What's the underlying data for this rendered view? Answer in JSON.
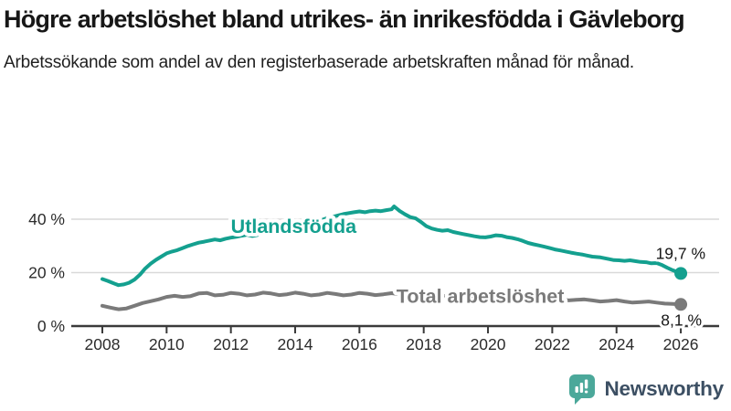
{
  "title": "Högre arbetslöshet bland utrikes- än inrikesfödda i Gävleborg",
  "subtitle": "Arbetssökande som andel av den registerbaserade arbetskraften månad för månad.",
  "branding": {
    "name": "Newsworthy",
    "logo_icon": "speech-bubble-bar-chart-icon"
  },
  "colors": {
    "foreign_born": "#14a08f",
    "total": "#7a7a7a",
    "grid": "#d9d9d9",
    "axis": "#3a3a3a",
    "text": "#1a1a1a",
    "logo_teal": "#4ba89a",
    "logo_text": "#3c4f63"
  },
  "chart_data": {
    "type": "line",
    "unit": "%",
    "grid": "horizontal",
    "legend": "inline-labels",
    "x_axis": {
      "ticks": [
        2008,
        2010,
        2012,
        2014,
        2016,
        2018,
        2020,
        2022,
        2024,
        2026
      ],
      "range": [
        2008,
        2026.2
      ]
    },
    "y_axis": {
      "ticks": [
        {
          "value": 0,
          "label": "0 %"
        },
        {
          "value": 20,
          "label": "20 %"
        },
        {
          "value": 40,
          "label": "40 %"
        }
      ],
      "range": [
        0,
        47
      ]
    },
    "series": [
      {
        "name": "Utlandsfödda",
        "color": "#14a08f",
        "end_label": "19,7 %",
        "end_value": 19.7,
        "label_at": {
          "year": 2012.0,
          "value": 34.9
        },
        "points": [
          [
            2008.0,
            17.6
          ],
          [
            2008.17,
            16.9
          ],
          [
            2008.33,
            16.1
          ],
          [
            2008.5,
            15.3
          ],
          [
            2008.67,
            15.6
          ],
          [
            2008.83,
            16.2
          ],
          [
            2009.0,
            17.4
          ],
          [
            2009.17,
            19.2
          ],
          [
            2009.33,
            21.5
          ],
          [
            2009.5,
            23.3
          ],
          [
            2009.67,
            24.8
          ],
          [
            2009.83,
            26.0
          ],
          [
            2010.0,
            27.2
          ],
          [
            2010.17,
            27.9
          ],
          [
            2010.33,
            28.4
          ],
          [
            2010.5,
            29.2
          ],
          [
            2010.67,
            30.0
          ],
          [
            2010.83,
            30.6
          ],
          [
            2011.0,
            31.2
          ],
          [
            2011.17,
            31.6
          ],
          [
            2011.33,
            32.0
          ],
          [
            2011.5,
            32.4
          ],
          [
            2011.67,
            32.1
          ],
          [
            2011.83,
            32.7
          ],
          [
            2012.0,
            33.1
          ],
          [
            2012.17,
            33.4
          ],
          [
            2012.33,
            33.8
          ],
          [
            2012.5,
            34.2
          ],
          [
            2012.67,
            33.7
          ],
          [
            2012.83,
            34.1
          ],
          [
            2013.0,
            34.9
          ],
          [
            2013.17,
            34.6
          ],
          [
            2013.33,
            35.1
          ],
          [
            2013.5,
            35.6
          ],
          [
            2013.67,
            35.9
          ],
          [
            2013.83,
            36.3
          ],
          [
            2014.0,
            36.8
          ],
          [
            2014.17,
            37.3
          ],
          [
            2014.33,
            37.9
          ],
          [
            2014.5,
            38.4
          ],
          [
            2014.67,
            39.0
          ],
          [
            2014.83,
            39.7
          ],
          [
            2015.0,
            40.4
          ],
          [
            2015.17,
            40.9
          ],
          [
            2015.33,
            41.4
          ],
          [
            2015.5,
            41.9
          ],
          [
            2015.67,
            42.3
          ],
          [
            2015.83,
            42.6
          ],
          [
            2016.0,
            42.9
          ],
          [
            2016.17,
            42.6
          ],
          [
            2016.33,
            43.0
          ],
          [
            2016.5,
            43.2
          ],
          [
            2016.67,
            43.0
          ],
          [
            2016.83,
            43.4
          ],
          [
            2017.0,
            43.7
          ],
          [
            2017.08,
            44.8
          ],
          [
            2017.25,
            43.1
          ],
          [
            2017.42,
            41.8
          ],
          [
            2017.58,
            40.8
          ],
          [
            2017.75,
            40.3
          ],
          [
            2017.92,
            38.9
          ],
          [
            2018.08,
            37.4
          ],
          [
            2018.25,
            36.5
          ],
          [
            2018.42,
            36.0
          ],
          [
            2018.58,
            35.7
          ],
          [
            2018.75,
            35.9
          ],
          [
            2018.92,
            35.2
          ],
          [
            2019.08,
            34.8
          ],
          [
            2019.25,
            34.4
          ],
          [
            2019.42,
            34.0
          ],
          [
            2019.58,
            33.6
          ],
          [
            2019.75,
            33.3
          ],
          [
            2019.92,
            33.2
          ],
          [
            2020.08,
            33.5
          ],
          [
            2020.25,
            34.0
          ],
          [
            2020.42,
            33.8
          ],
          [
            2020.58,
            33.3
          ],
          [
            2020.75,
            33.0
          ],
          [
            2020.92,
            32.5
          ],
          [
            2021.08,
            31.9
          ],
          [
            2021.25,
            31.1
          ],
          [
            2021.42,
            30.6
          ],
          [
            2021.58,
            30.2
          ],
          [
            2021.75,
            29.7
          ],
          [
            2021.92,
            29.2
          ],
          [
            2022.08,
            28.7
          ],
          [
            2022.25,
            28.3
          ],
          [
            2022.42,
            27.9
          ],
          [
            2022.58,
            27.5
          ],
          [
            2022.75,
            27.1
          ],
          [
            2022.92,
            26.8
          ],
          [
            2023.08,
            26.4
          ],
          [
            2023.25,
            26.0
          ],
          [
            2023.5,
            25.7
          ],
          [
            2023.75,
            25.1
          ],
          [
            2023.92,
            24.7
          ],
          [
            2024.08,
            24.6
          ],
          [
            2024.25,
            24.4
          ],
          [
            2024.42,
            24.6
          ],
          [
            2024.58,
            24.3
          ],
          [
            2024.75,
            24.0
          ],
          [
            2024.92,
            23.9
          ],
          [
            2025.08,
            23.5
          ],
          [
            2025.25,
            23.6
          ],
          [
            2025.42,
            22.8
          ],
          [
            2025.58,
            21.8
          ],
          [
            2025.75,
            20.9
          ],
          [
            2025.92,
            20.1
          ],
          [
            2026.0,
            19.7
          ]
        ]
      },
      {
        "name": "Total arbetslöshet",
        "color": "#7a7a7a",
        "end_label": "8,1 %",
        "end_value": 8.1,
        "label_at": {
          "year": 2017.15,
          "value": 8.7
        },
        "points": [
          [
            2008.0,
            7.6
          ],
          [
            2008.25,
            6.9
          ],
          [
            2008.5,
            6.3
          ],
          [
            2008.75,
            6.6
          ],
          [
            2009.0,
            7.6
          ],
          [
            2009.25,
            8.6
          ],
          [
            2009.5,
            9.3
          ],
          [
            2009.75,
            10.0
          ],
          [
            2010.0,
            10.9
          ],
          [
            2010.25,
            11.3
          ],
          [
            2010.5,
            10.9
          ],
          [
            2010.75,
            11.2
          ],
          [
            2011.0,
            12.2
          ],
          [
            2011.25,
            12.4
          ],
          [
            2011.5,
            11.5
          ],
          [
            2011.75,
            11.7
          ],
          [
            2012.0,
            12.4
          ],
          [
            2012.25,
            12.1
          ],
          [
            2012.5,
            11.5
          ],
          [
            2012.75,
            11.8
          ],
          [
            2013.0,
            12.5
          ],
          [
            2013.25,
            12.2
          ],
          [
            2013.5,
            11.6
          ],
          [
            2013.75,
            11.9
          ],
          [
            2014.0,
            12.5
          ],
          [
            2014.25,
            12.1
          ],
          [
            2014.5,
            11.5
          ],
          [
            2014.75,
            11.8
          ],
          [
            2015.0,
            12.4
          ],
          [
            2015.25,
            12.0
          ],
          [
            2015.5,
            11.5
          ],
          [
            2015.75,
            11.8
          ],
          [
            2016.0,
            12.4
          ],
          [
            2016.25,
            12.1
          ],
          [
            2016.5,
            11.6
          ],
          [
            2016.75,
            11.9
          ],
          [
            2017.0,
            12.3
          ],
          [
            2017.25,
            11.9
          ],
          [
            2017.5,
            11.4
          ],
          [
            2017.75,
            11.6
          ],
          [
            2018.0,
            12.0
          ],
          [
            2018.25,
            11.6
          ],
          [
            2018.5,
            11.1
          ],
          [
            2018.75,
            11.3
          ],
          [
            2019.0,
            11.7
          ],
          [
            2019.25,
            11.4
          ],
          [
            2019.5,
            11.0
          ],
          [
            2019.75,
            11.3
          ],
          [
            2020.0,
            11.6
          ],
          [
            2020.25,
            12.6
          ],
          [
            2020.5,
            12.9
          ],
          [
            2020.75,
            12.4
          ],
          [
            2021.0,
            12.2
          ],
          [
            2021.25,
            11.7
          ],
          [
            2021.5,
            11.1
          ],
          [
            2021.75,
            10.8
          ],
          [
            2022.0,
            10.6
          ],
          [
            2022.25,
            10.1
          ],
          [
            2022.5,
            9.6
          ],
          [
            2022.75,
            9.8
          ],
          [
            2023.0,
            10.0
          ],
          [
            2023.25,
            9.6
          ],
          [
            2023.5,
            9.2
          ],
          [
            2023.75,
            9.4
          ],
          [
            2024.0,
            9.7
          ],
          [
            2024.25,
            9.2
          ],
          [
            2024.5,
            8.8
          ],
          [
            2024.75,
            9.0
          ],
          [
            2025.0,
            9.2
          ],
          [
            2025.25,
            8.8
          ],
          [
            2025.5,
            8.4
          ],
          [
            2025.75,
            8.3
          ],
          [
            2026.0,
            8.1
          ]
        ]
      }
    ]
  }
}
